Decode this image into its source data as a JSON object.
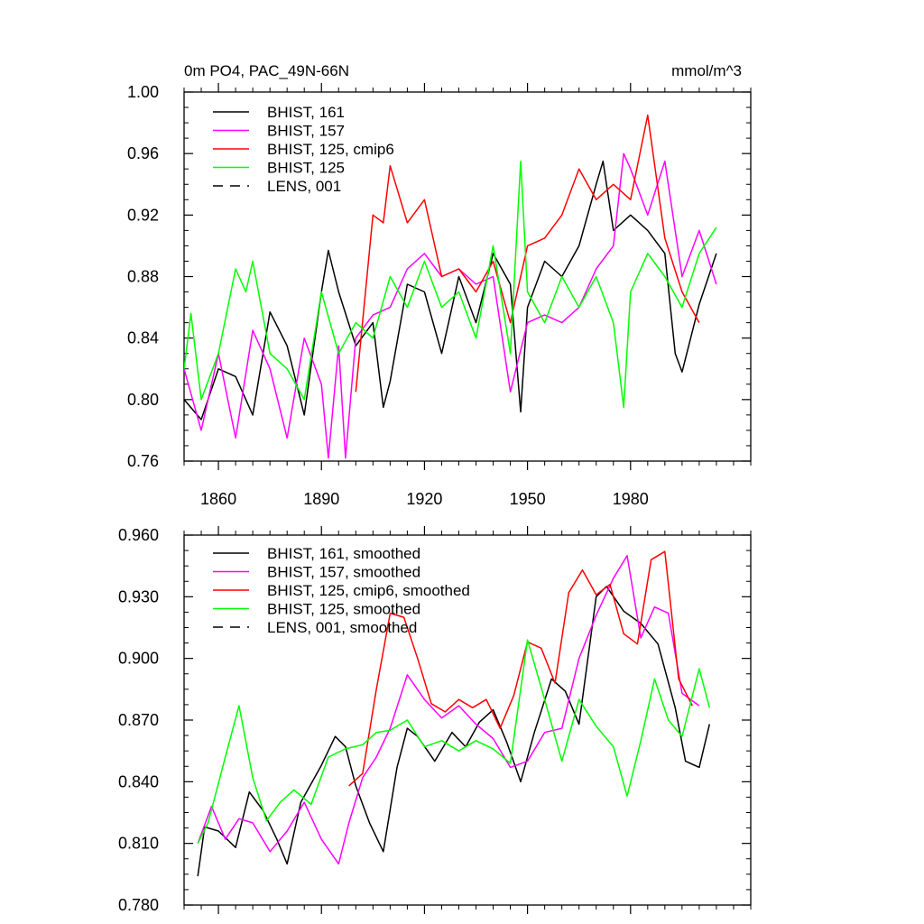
{
  "chart_data": [
    {
      "type": "line",
      "title": "0m PO4, PAC_49N-66N",
      "units": "mmol/m^3",
      "xlabel": "",
      "ylabel": "",
      "xlim": [
        1850,
        2015
      ],
      "ylim": [
        0.76,
        1.0
      ],
      "xticks": [
        1860,
        1890,
        1920,
        1950,
        1980
      ],
      "xtick_labels": [
        "1860",
        "1890",
        "1920",
        "1950",
        "1980"
      ],
      "yticks": [
        0.76,
        0.8,
        0.84,
        0.88,
        0.92,
        0.96,
        1.0
      ],
      "ytick_labels": [
        "0.76",
        "0.80",
        "0.84",
        "0.88",
        "0.92",
        "0.96",
        "1.00"
      ],
      "grid": false,
      "legend_position": "top-left",
      "series": [
        {
          "name": "BHIST, 161",
          "color": "#000000",
          "dash": "solid",
          "x": [
            1850,
            1855,
            1860,
            1865,
            1870,
            1875,
            1880,
            1885,
            1890,
            1892,
            1895,
            1900,
            1905,
            1908,
            1910,
            1915,
            1920,
            1925,
            1930,
            1935,
            1940,
            1945,
            1948,
            1950,
            1955,
            1960,
            1965,
            1970,
            1972,
            1975,
            1980,
            1985,
            1990,
            1993,
            1995,
            2000,
            2005
          ],
          "values": [
            0.8,
            0.787,
            0.82,
            0.815,
            0.79,
            0.857,
            0.835,
            0.79,
            0.87,
            0.897,
            0.87,
            0.835,
            0.85,
            0.795,
            0.812,
            0.875,
            0.87,
            0.83,
            0.88,
            0.85,
            0.895,
            0.875,
            0.792,
            0.86,
            0.89,
            0.88,
            0.9,
            0.94,
            0.955,
            0.91,
            0.92,
            0.91,
            0.895,
            0.83,
            0.818,
            0.862,
            0.895
          ]
        },
        {
          "name": "BHIST, 157",
          "color": "#ff00ff",
          "dash": "solid",
          "x": [
            1850,
            1855,
            1860,
            1865,
            1870,
            1875,
            1880,
            1885,
            1890,
            1892,
            1895,
            1897,
            1900,
            1905,
            1910,
            1915,
            1920,
            1925,
            1930,
            1935,
            1940,
            1945,
            1950,
            1955,
            1960,
            1965,
            1970,
            1975,
            1978,
            1980,
            1985,
            1990,
            1995,
            2000,
            2005
          ],
          "values": [
            0.82,
            0.78,
            0.83,
            0.775,
            0.845,
            0.82,
            0.775,
            0.84,
            0.81,
            0.762,
            0.835,
            0.762,
            0.84,
            0.855,
            0.86,
            0.885,
            0.895,
            0.88,
            0.885,
            0.875,
            0.88,
            0.805,
            0.85,
            0.855,
            0.85,
            0.86,
            0.885,
            0.9,
            0.96,
            0.95,
            0.92,
            0.955,
            0.88,
            0.91,
            0.875
          ]
        },
        {
          "name": "BHIST, 125, cmip6",
          "color": "#ff0000",
          "dash": "solid",
          "x": [
            1900,
            1905,
            1908,
            1910,
            1915,
            1920,
            1925,
            1930,
            1935,
            1940,
            1945,
            1950,
            1955,
            1960,
            1965,
            1970,
            1975,
            1980,
            1985,
            1990,
            1995,
            2000
          ],
          "values": [
            0.805,
            0.92,
            0.915,
            0.952,
            0.915,
            0.93,
            0.88,
            0.885,
            0.87,
            0.89,
            0.85,
            0.9,
            0.905,
            0.92,
            0.95,
            0.93,
            0.94,
            0.93,
            0.985,
            0.905,
            0.87,
            0.85
          ]
        },
        {
          "name": "BHIST, 125",
          "color": "#00ff00",
          "dash": "solid",
          "x": [
            1850,
            1852,
            1855,
            1860,
            1865,
            1868,
            1870,
            1875,
            1880,
            1885,
            1890,
            1895,
            1900,
            1905,
            1910,
            1915,
            1920,
            1925,
            1930,
            1935,
            1940,
            1945,
            1948,
            1950,
            1955,
            1960,
            1965,
            1970,
            1975,
            1978,
            1980,
            1985,
            1990,
            1995,
            2000,
            2005
          ],
          "values": [
            0.82,
            0.856,
            0.8,
            0.83,
            0.885,
            0.87,
            0.89,
            0.83,
            0.82,
            0.8,
            0.87,
            0.83,
            0.85,
            0.84,
            0.88,
            0.86,
            0.89,
            0.86,
            0.87,
            0.84,
            0.9,
            0.83,
            0.955,
            0.87,
            0.85,
            0.88,
            0.86,
            0.88,
            0.85,
            0.795,
            0.87,
            0.895,
            0.88,
            0.86,
            0.895,
            0.912
          ]
        },
        {
          "name": "LENS, 001",
          "color": "#000000",
          "dash": "dashed",
          "x": [],
          "values": []
        }
      ]
    },
    {
      "type": "line",
      "title": "",
      "xlabel": "",
      "ylabel": "",
      "xlim": [
        1850,
        2015
      ],
      "ylim": [
        0.78,
        0.96
      ],
      "xticks": [
        1860,
        1890,
        1920,
        1950,
        1980
      ],
      "xtick_labels": [],
      "yticks": [
        0.78,
        0.81,
        0.84,
        0.87,
        0.9,
        0.93,
        0.96
      ],
      "ytick_labels": [
        "0.780",
        "0.810",
        "0.840",
        "0.870",
        "0.900",
        "0.930",
        "0.960"
      ],
      "grid": false,
      "legend_position": "top-left",
      "series": [
        {
          "name": "BHIST, 161, smoothed",
          "color": "#000000",
          "dash": "solid",
          "x": [
            1854,
            1856,
            1860,
            1865,
            1869,
            1873,
            1877,
            1880,
            1884,
            1890,
            1894,
            1897,
            1900,
            1904,
            1908,
            1912,
            1915,
            1918,
            1923,
            1928,
            1932,
            1936,
            1940,
            1944,
            1948,
            1952,
            1957,
            1961,
            1965,
            1970,
            1973,
            1978,
            1983,
            1988,
            1993,
            1996,
            2000,
            2003
          ],
          "values": [
            0.794,
            0.818,
            0.816,
            0.808,
            0.835,
            0.826,
            0.812,
            0.8,
            0.83,
            0.848,
            0.862,
            0.857,
            0.838,
            0.82,
            0.806,
            0.847,
            0.866,
            0.862,
            0.85,
            0.864,
            0.857,
            0.869,
            0.875,
            0.859,
            0.84,
            0.864,
            0.89,
            0.884,
            0.868,
            0.93,
            0.935,
            0.923,
            0.917,
            0.907,
            0.876,
            0.85,
            0.847,
            0.868
          ]
        },
        {
          "name": "BHIST, 157, smoothed",
          "color": "#ff00ff",
          "dash": "solid",
          "x": [
            1854,
            1858,
            1862,
            1866,
            1870,
            1875,
            1880,
            1885,
            1890,
            1895,
            1898,
            1902,
            1906,
            1910,
            1915,
            1920,
            1925,
            1930,
            1935,
            1940,
            1945,
            1950,
            1955,
            1960,
            1965,
            1970,
            1975,
            1979,
            1983,
            1987,
            1991,
            1995,
            2000
          ],
          "values": [
            0.81,
            0.828,
            0.812,
            0.822,
            0.82,
            0.806,
            0.816,
            0.83,
            0.812,
            0.8,
            0.82,
            0.842,
            0.852,
            0.866,
            0.892,
            0.88,
            0.871,
            0.877,
            0.868,
            0.861,
            0.847,
            0.85,
            0.864,
            0.866,
            0.9,
            0.921,
            0.939,
            0.95,
            0.91,
            0.925,
            0.922,
            0.883,
            0.877
          ]
        },
        {
          "name": "BHIST, 125, cmip6, smoothed",
          "color": "#ff0000",
          "dash": "solid",
          "x": [
            1898,
            1902,
            1906,
            1910,
            1914,
            1918,
            1922,
            1926,
            1930,
            1934,
            1938,
            1942,
            1946,
            1950,
            1954,
            1958,
            1962,
            1966,
            1970,
            1974,
            1978,
            1982,
            1986,
            1990,
            1994,
            1998
          ],
          "values": [
            0.838,
            0.844,
            0.885,
            0.922,
            0.92,
            0.9,
            0.878,
            0.874,
            0.88,
            0.876,
            0.88,
            0.866,
            0.882,
            0.908,
            0.905,
            0.888,
            0.932,
            0.943,
            0.931,
            0.936,
            0.912,
            0.907,
            0.948,
            0.952,
            0.89,
            0.877
          ]
        },
        {
          "name": "BHIST, 125, smoothed",
          "color": "#00ff00",
          "dash": "solid",
          "x": [
            1854,
            1857,
            1862,
            1866,
            1870,
            1874,
            1878,
            1882,
            1887,
            1892,
            1897,
            1902,
            1906,
            1910,
            1915,
            1920,
            1925,
            1930,
            1935,
            1940,
            1945,
            1950,
            1955,
            1960,
            1965,
            1970,
            1975,
            1979,
            1983,
            1987,
            1991,
            1995,
            2000,
            2003
          ],
          "values": [
            0.81,
            0.82,
            0.852,
            0.877,
            0.842,
            0.821,
            0.83,
            0.836,
            0.829,
            0.852,
            0.856,
            0.858,
            0.864,
            0.865,
            0.87,
            0.857,
            0.86,
            0.855,
            0.86,
            0.856,
            0.849,
            0.909,
            0.88,
            0.85,
            0.88,
            0.867,
            0.857,
            0.833,
            0.86,
            0.89,
            0.87,
            0.862,
            0.895,
            0.876
          ]
        },
        {
          "name": "LENS, 001, smoothed",
          "color": "#000000",
          "dash": "dashed",
          "x": [],
          "values": []
        }
      ]
    }
  ]
}
